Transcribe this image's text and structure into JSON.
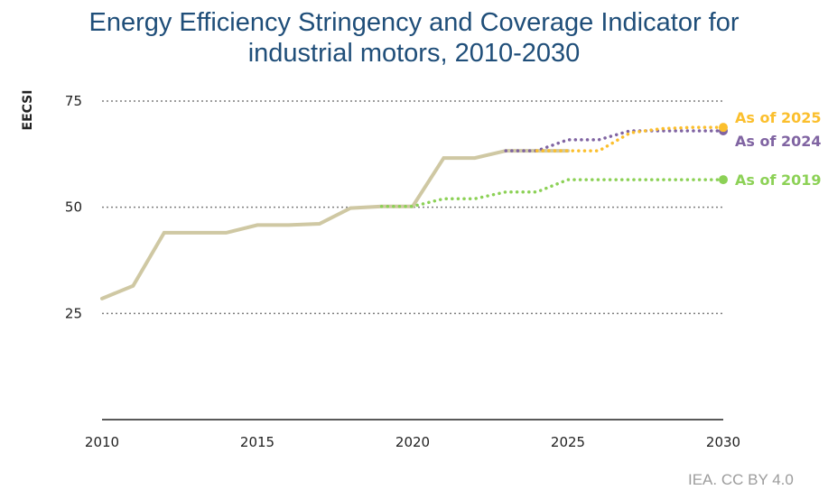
{
  "chart_data": {
    "type": "line",
    "title": "Energy Efficiency Stringency and Coverage Indicator for",
    "subtitle": "industrial motors, 2010-2030",
    "ylabel": "EECSI",
    "xlabel": "",
    "xlim": [
      2010,
      2030
    ],
    "ylim": [
      0,
      75
    ],
    "x_ticks": [
      "2010",
      "2015",
      "2020",
      "2025",
      "2030"
    ],
    "y_ticks": [
      "25",
      "50",
      "75"
    ],
    "grid": "horizontal dotted",
    "series": [
      {
        "name": "",
        "style": "solid",
        "color": "#cfc8a3",
        "x": [
          2010,
          2011,
          2012,
          2013,
          2014,
          2015,
          2016,
          2017,
          2018,
          2019,
          2020,
          2021,
          2022,
          2023,
          2024,
          2025
        ],
        "y": [
          28.5,
          31.5,
          44,
          44,
          44,
          45.8,
          45.8,
          46.1,
          49.8,
          50.2,
          50.2,
          61.6,
          61.6,
          63.3,
          63.3,
          63.3
        ]
      },
      {
        "name": "As of 2019",
        "style": "dotted",
        "color": "#8cd156",
        "x": [
          2019,
          2020,
          2021,
          2022,
          2023,
          2024,
          2025,
          2026,
          2027,
          2028,
          2029,
          2030
        ],
        "y": [
          50.2,
          50.2,
          52,
          52,
          53.6,
          53.6,
          56.5,
          56.5,
          56.5,
          56.5,
          56.5,
          56.5
        ]
      },
      {
        "name": "As of 2024",
        "style": "dotted",
        "color": "#8064a2",
        "x": [
          2023,
          2024,
          2025,
          2026,
          2027,
          2028,
          2029,
          2030
        ],
        "y": [
          63.3,
          63.3,
          65.9,
          65.9,
          68,
          68,
          68,
          68
        ]
      },
      {
        "name": "As of 2025",
        "style": "dotted",
        "color": "#fbbf2d",
        "x": [
          2024,
          2025,
          2026,
          2027,
          2028,
          2029,
          2030
        ],
        "y": [
          63.3,
          63.3,
          63.3,
          67.5,
          68.5,
          68.8,
          68.8
        ]
      }
    ]
  },
  "credit": "IEA. CC BY 4.0"
}
